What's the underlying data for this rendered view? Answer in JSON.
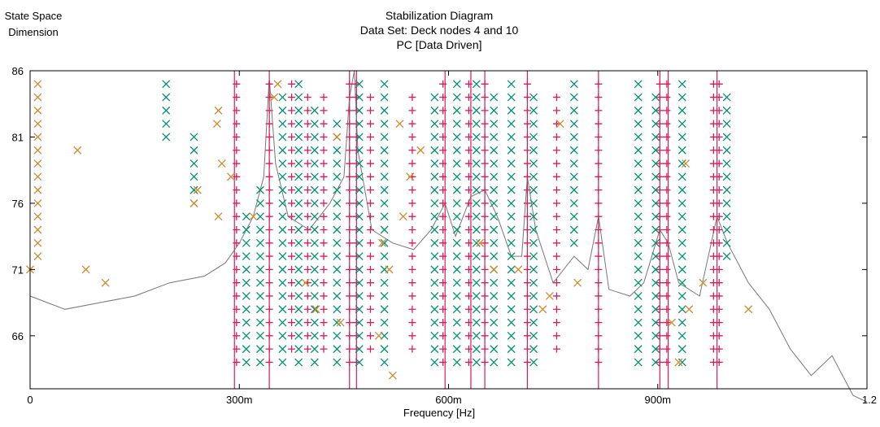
{
  "header": {
    "ylabel_line1": "State Space",
    "ylabel_line2": "Dimension",
    "title_line1": "Stabilization Diagram",
    "title_line2": "Data Set: Deck nodes 4 and 10",
    "title_line3": "PC [Data Driven]"
  },
  "chart_data": {
    "type": "scatter",
    "title": "Stabilization Diagram",
    "subtitle": "Data Set: Deck nodes 4 and 10 / PC [Data Driven]",
    "xlabel": "Frequency [Hz]",
    "ylabel": "State Space Dimension",
    "xlim": [
      0,
      1.2
    ],
    "ylim": [
      62,
      86
    ],
    "x_ticks": [
      {
        "value": 0,
        "label": "0"
      },
      {
        "value": 0.3,
        "label": "300m"
      },
      {
        "value": 0.6,
        "label": "600m"
      },
      {
        "value": 0.9,
        "label": "900m"
      },
      {
        "value": 1.2,
        "label": "1.2"
      }
    ],
    "y_ticks": [
      66,
      71,
      76,
      81,
      86
    ],
    "legend": "none",
    "colors": {
      "stable": "#d81b5b",
      "stable_freq_damping": "#00916e",
      "unstable": "#cc8a2e",
      "spectrum": "#777777",
      "stable_line": "#d81b5b"
    },
    "stable_frequencies": [
      0.293,
      0.343,
      0.458,
      0.468,
      0.595,
      0.632,
      0.652,
      0.713,
      0.815,
      0.903,
      0.915,
      0.985
    ],
    "series": [
      {
        "marker": "plus",
        "color": "#d81b5b",
        "columns": [
          {
            "x": 0.296,
            "ymin": 64,
            "ymax": 85
          },
          {
            "x": 0.343,
            "ymin": 64,
            "ymax": 85
          },
          {
            "x": 0.375,
            "ymin": 65,
            "ymax": 85
          },
          {
            "x": 0.398,
            "ymin": 65,
            "ymax": 84
          },
          {
            "x": 0.421,
            "ymin": 65,
            "ymax": 84
          },
          {
            "x": 0.458,
            "ymin": 64,
            "ymax": 85
          },
          {
            "x": 0.468,
            "ymin": 64,
            "ymax": 85
          },
          {
            "x": 0.488,
            "ymin": 65,
            "ymax": 84
          },
          {
            "x": 0.548,
            "ymin": 65,
            "ymax": 84
          },
          {
            "x": 0.592,
            "ymin": 64,
            "ymax": 85
          },
          {
            "x": 0.629,
            "ymin": 64,
            "ymax": 85
          },
          {
            "x": 0.652,
            "ymin": 64,
            "ymax": 85
          },
          {
            "x": 0.713,
            "ymin": 64,
            "ymax": 85
          },
          {
            "x": 0.755,
            "ymin": 65,
            "ymax": 84
          },
          {
            "x": 0.815,
            "ymin": 64,
            "ymax": 85
          },
          {
            "x": 0.903,
            "ymin": 64,
            "ymax": 85
          },
          {
            "x": 0.913,
            "ymin": 64,
            "ymax": 85
          },
          {
            "x": 0.98,
            "ymin": 64,
            "ymax": 85
          },
          {
            "x": 0.988,
            "ymin": 64,
            "ymax": 85
          }
        ]
      },
      {
        "marker": "cross",
        "color": "#00916e",
        "columns": [
          {
            "x": 0.195,
            "ymin": 81,
            "ymax": 85
          },
          {
            "x": 0.235,
            "ymin": 76,
            "ymax": 81
          },
          {
            "x": 0.31,
            "ymin": 64,
            "ymax": 75
          },
          {
            "x": 0.33,
            "ymin": 64,
            "ymax": 77
          },
          {
            "x": 0.362,
            "ymin": 64,
            "ymax": 84
          },
          {
            "x": 0.385,
            "ymin": 64,
            "ymax": 85
          },
          {
            "x": 0.408,
            "ymin": 64,
            "ymax": 83
          },
          {
            "x": 0.44,
            "ymin": 64,
            "ymax": 82
          },
          {
            "x": 0.472,
            "ymin": 64,
            "ymax": 85
          },
          {
            "x": 0.508,
            "ymin": 64,
            "ymax": 85
          },
          {
            "x": 0.58,
            "ymin": 64,
            "ymax": 84
          },
          {
            "x": 0.612,
            "ymin": 64,
            "ymax": 85
          },
          {
            "x": 0.64,
            "ymin": 64,
            "ymax": 85
          },
          {
            "x": 0.665,
            "ymin": 64,
            "ymax": 84
          },
          {
            "x": 0.69,
            "ymin": 64,
            "ymax": 85
          },
          {
            "x": 0.722,
            "ymin": 64,
            "ymax": 84
          },
          {
            "x": 0.78,
            "ymin": 73,
            "ymax": 85
          },
          {
            "x": 0.872,
            "ymin": 64,
            "ymax": 85
          },
          {
            "x": 0.897,
            "ymin": 64,
            "ymax": 84
          },
          {
            "x": 0.935,
            "ymin": 64,
            "ymax": 85
          },
          {
            "x": 0.999,
            "ymin": 72,
            "ymax": 84
          }
        ]
      },
      {
        "marker": "cross",
        "color": "#cc8a2e",
        "points": [
          [
            0.011,
            72
          ],
          [
            0.011,
            73
          ],
          [
            0.011,
            74
          ],
          [
            0.011,
            75
          ],
          [
            0.011,
            76
          ],
          [
            0.011,
            77
          ],
          [
            0.011,
            78
          ],
          [
            0.011,
            79
          ],
          [
            0.011,
            80
          ],
          [
            0.011,
            81
          ],
          [
            0.011,
            82
          ],
          [
            0.011,
            83
          ],
          [
            0.011,
            84
          ],
          [
            0.011,
            85
          ],
          [
            0.0,
            71
          ],
          [
            0.068,
            80
          ],
          [
            0.08,
            71
          ],
          [
            0.108,
            70
          ],
          [
            0.235,
            76
          ],
          [
            0.24,
            77
          ],
          [
            0.27,
            75
          ],
          [
            0.275,
            79
          ],
          [
            0.268,
            82
          ],
          [
            0.27,
            83
          ],
          [
            0.288,
            78
          ],
          [
            0.32,
            75
          ],
          [
            0.355,
            85
          ],
          [
            0.35,
            84
          ],
          [
            0.395,
            70
          ],
          [
            0.41,
            68
          ],
          [
            0.44,
            81
          ],
          [
            0.445,
            67
          ],
          [
            0.5,
            66
          ],
          [
            0.505,
            73
          ],
          [
            0.515,
            71
          ],
          [
            0.52,
            63
          ],
          [
            0.53,
            82
          ],
          [
            0.535,
            75
          ],
          [
            0.545,
            78
          ],
          [
            0.56,
            80
          ],
          [
            0.645,
            73
          ],
          [
            0.665,
            71
          ],
          [
            0.7,
            71
          ],
          [
            0.735,
            68
          ],
          [
            0.745,
            69
          ],
          [
            0.76,
            82
          ],
          [
            0.785,
            70
          ],
          [
            0.92,
            67
          ],
          [
            0.93,
            64
          ],
          [
            0.94,
            79
          ],
          [
            0.945,
            68
          ],
          [
            0.965,
            70
          ],
          [
            1.03,
            68
          ]
        ]
      }
    ],
    "spectrum": {
      "x": [
        0.0,
        0.05,
        0.1,
        0.15,
        0.2,
        0.25,
        0.28,
        0.3,
        0.32,
        0.335,
        0.343,
        0.352,
        0.37,
        0.4,
        0.43,
        0.45,
        0.458,
        0.465,
        0.47,
        0.49,
        0.52,
        0.55,
        0.575,
        0.595,
        0.61,
        0.632,
        0.652,
        0.67,
        0.69,
        0.705,
        0.713,
        0.725,
        0.75,
        0.78,
        0.8,
        0.815,
        0.83,
        0.86,
        0.88,
        0.903,
        0.915,
        0.93,
        0.96,
        0.985,
        1.0,
        1.03,
        1.06,
        1.09,
        1.12,
        1.15,
        1.18,
        1.2
      ],
      "y": [
        69,
        68,
        68.5,
        69,
        70,
        70.5,
        71.5,
        73,
        75,
        78,
        85.5,
        79,
        75,
        74,
        76,
        78,
        84,
        86,
        80,
        74,
        73,
        72.5,
        74,
        76,
        73.5,
        76.5,
        77,
        75,
        72,
        72,
        78,
        74,
        70,
        72,
        71,
        75,
        69.5,
        69,
        70,
        74,
        73,
        70,
        69,
        75,
        73,
        70,
        68,
        65,
        63,
        64.5,
        61.5,
        61
      ]
    }
  }
}
